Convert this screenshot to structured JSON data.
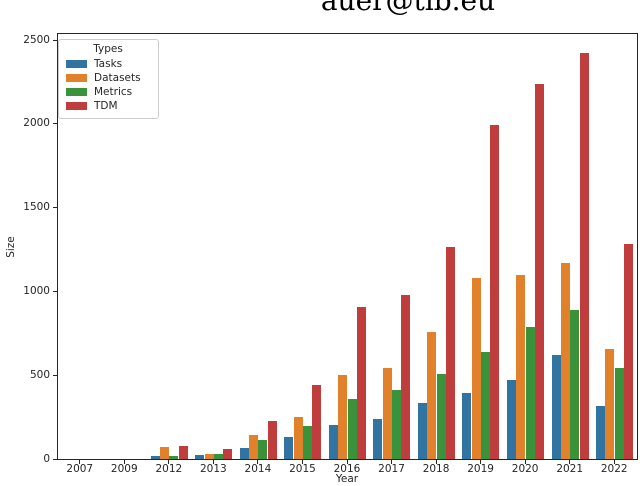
{
  "title": "auer@tib.eu",
  "chart_data": {
    "type": "bar",
    "categories": [
      "2007",
      "2009",
      "2012",
      "2013",
      "2014",
      "2015",
      "2016",
      "2017",
      "2018",
      "2019",
      "2020",
      "2021",
      "2022"
    ],
    "series": [
      {
        "name": "Tasks",
        "color": "#3274a1",
        "values": [
          0,
          0,
          15,
          25,
          65,
          130,
          205,
          240,
          335,
          395,
          470,
          620,
          315
        ]
      },
      {
        "name": "Datasets",
        "color": "#e1812c",
        "values": [
          0,
          0,
          70,
          30,
          145,
          250,
          500,
          540,
          755,
          1080,
          1100,
          1170,
          655
        ]
      },
      {
        "name": "Metrics",
        "color": "#3a923a",
        "values": [
          0,
          0,
          15,
          30,
          115,
          195,
          360,
          410,
          505,
          640,
          790,
          890,
          540
        ]
      },
      {
        "name": "TDM",
        "color": "#c03d3e",
        "values": [
          0,
          0,
          75,
          60,
          225,
          440,
          905,
          980,
          1265,
          1990,
          2240,
          2420,
          1280
        ]
      }
    ],
    "legend_title": "Types",
    "legend_position": "upper left",
    "xlabel": "Year",
    "ylabel": "Size",
    "ylim": [
      0,
      2540
    ],
    "yticks": [
      0,
      500,
      1000,
      1500,
      2000,
      2500
    ],
    "grid": false
  }
}
